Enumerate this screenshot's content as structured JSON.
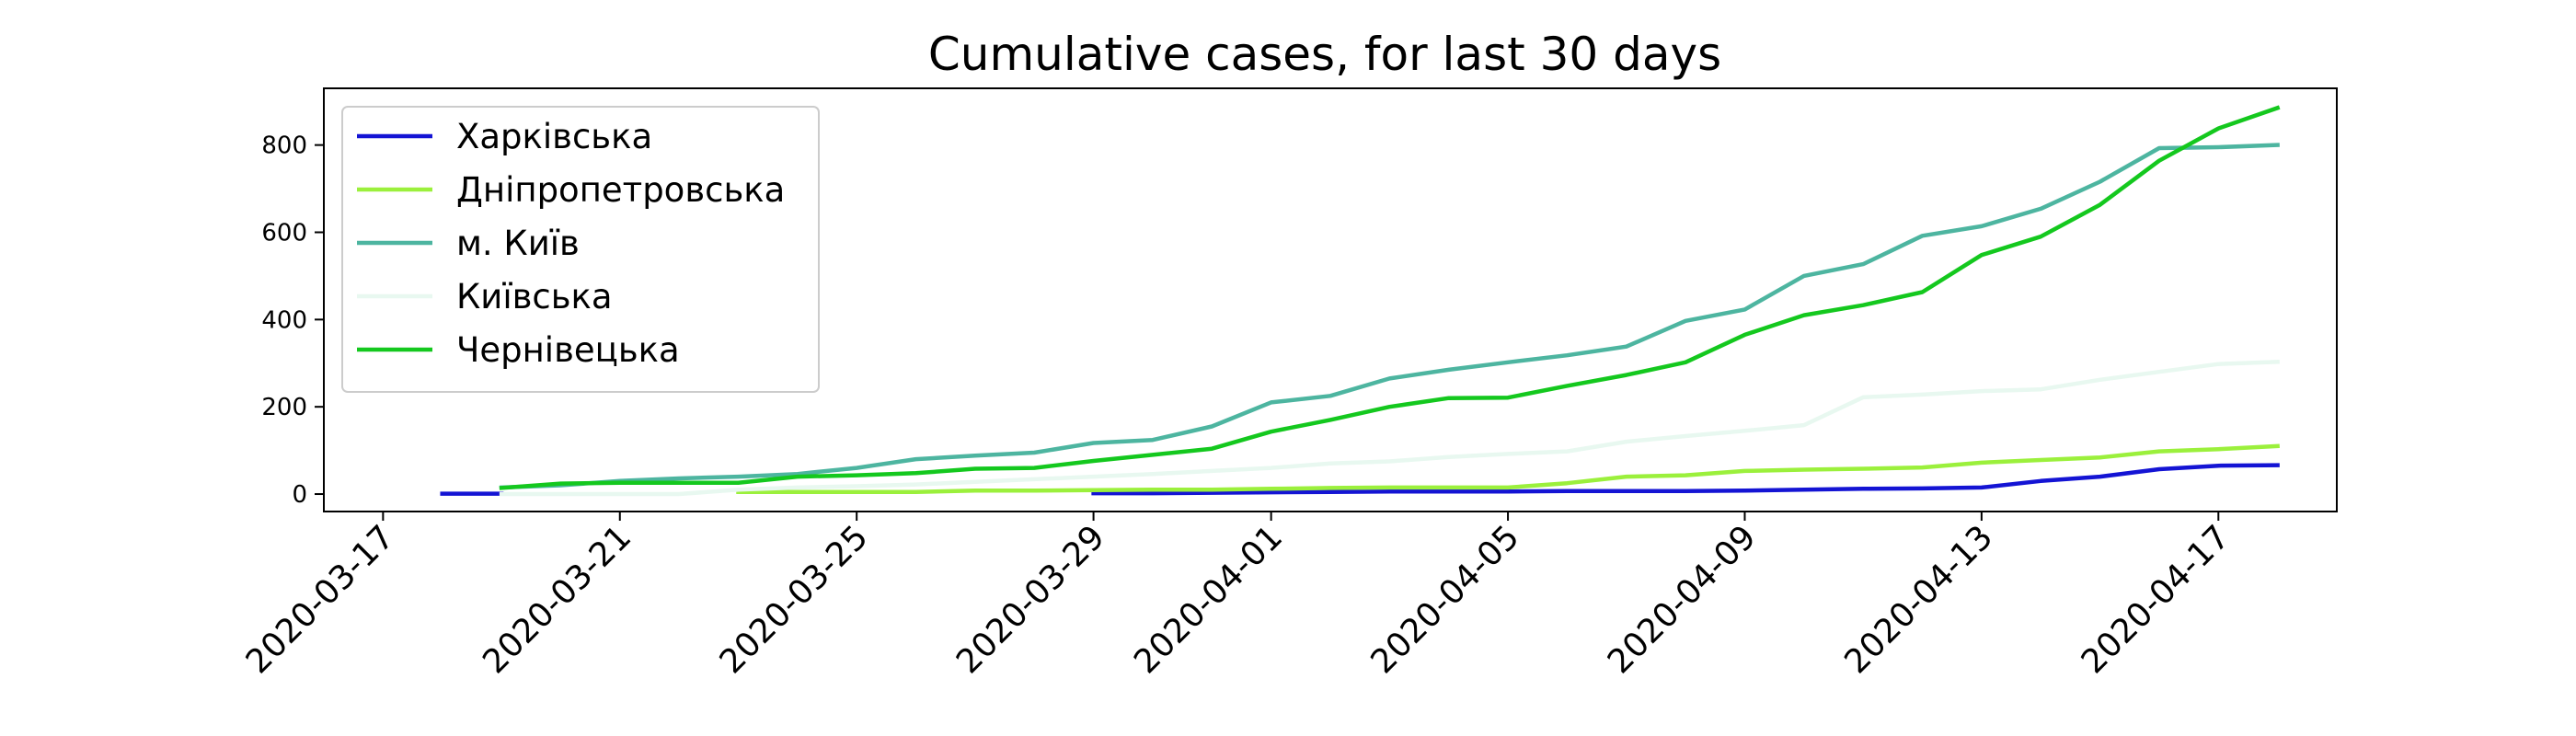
{
  "chart_data": {
    "type": "line",
    "title": "Cumulative cases, for last 30 days",
    "xlabel": "",
    "ylabel": "",
    "x_start": "2020-03-17",
    "x": [
      "2020-03-18",
      "2020-03-19",
      "2020-03-20",
      "2020-03-21",
      "2020-03-22",
      "2020-03-23",
      "2020-03-24",
      "2020-03-25",
      "2020-03-26",
      "2020-03-27",
      "2020-03-28",
      "2020-03-29",
      "2020-03-30",
      "2020-03-31",
      "2020-04-01",
      "2020-04-02",
      "2020-04-03",
      "2020-04-04",
      "2020-04-05",
      "2020-04-06",
      "2020-04-07",
      "2020-04-08",
      "2020-04-09",
      "2020-04-10",
      "2020-04-11",
      "2020-04-12",
      "2020-04-13",
      "2020-04-14",
      "2020-04-15",
      "2020-04-16",
      "2020-04-17",
      "2020-04-18"
    ],
    "xticks": [
      "2020-03-17",
      "2020-03-21",
      "2020-03-25",
      "2020-03-29",
      "2020-04-01",
      "2020-04-05",
      "2020-04-09",
      "2020-04-13",
      "2020-04-17"
    ],
    "xlim": [
      "2020-03-16",
      "2020-04-19"
    ],
    "yticks": [
      0,
      200,
      400,
      600,
      800
    ],
    "ylim": [
      -40,
      930
    ],
    "grid": false,
    "legend_position": "top-left",
    "series": [
      {
        "name": "Харківська",
        "color": "#1414d4",
        "values": [
          1,
          1,
          null,
          null,
          null,
          null,
          null,
          null,
          null,
          null,
          null,
          2,
          2,
          3,
          4,
          5,
          6,
          6,
          6,
          7,
          7,
          7,
          8,
          10,
          12,
          13,
          15,
          30,
          40,
          57,
          65,
          66
        ]
      },
      {
        "name": "Дніпропетровська",
        "color": "#9bf03c",
        "values": [
          null,
          null,
          null,
          null,
          null,
          5,
          5,
          5,
          5,
          8,
          8,
          9,
          10,
          10,
          12,
          14,
          15,
          15,
          15,
          25,
          40,
          43,
          53,
          56,
          58,
          61,
          72,
          78,
          84,
          98,
          103,
          110
        ]
      },
      {
        "name": "м. Київ",
        "color": "#4db5a0",
        "values": [
          null,
          15,
          20,
          30,
          36,
          40,
          46,
          60,
          80,
          88,
          95,
          117,
          124,
          155,
          210,
          225,
          265,
          285,
          302,
          318,
          338,
          397,
          423,
          500,
          527,
          592,
          614,
          654,
          716,
          793,
          795,
          800
        ]
      },
      {
        "name": "Київська",
        "color": "#e8f8f0",
        "values": [
          null,
          0,
          0,
          0,
          0,
          10,
          15,
          18,
          22,
          28,
          34,
          40,
          46,
          53,
          60,
          70,
          75,
          85,
          92,
          98,
          120,
          133,
          145,
          158,
          222,
          228,
          236,
          240,
          262,
          280,
          298,
          303
        ]
      },
      {
        "name": "Чернівецька",
        "color": "#14c81e",
        "values": [
          null,
          14,
          24,
          26,
          26,
          26,
          40,
          43,
          48,
          58,
          60,
          76,
          90,
          104,
          143,
          170,
          200,
          220,
          221,
          248,
          273,
          302,
          365,
          410,
          433,
          463,
          548,
          590,
          663,
          764,
          838,
          885
        ]
      }
    ]
  }
}
